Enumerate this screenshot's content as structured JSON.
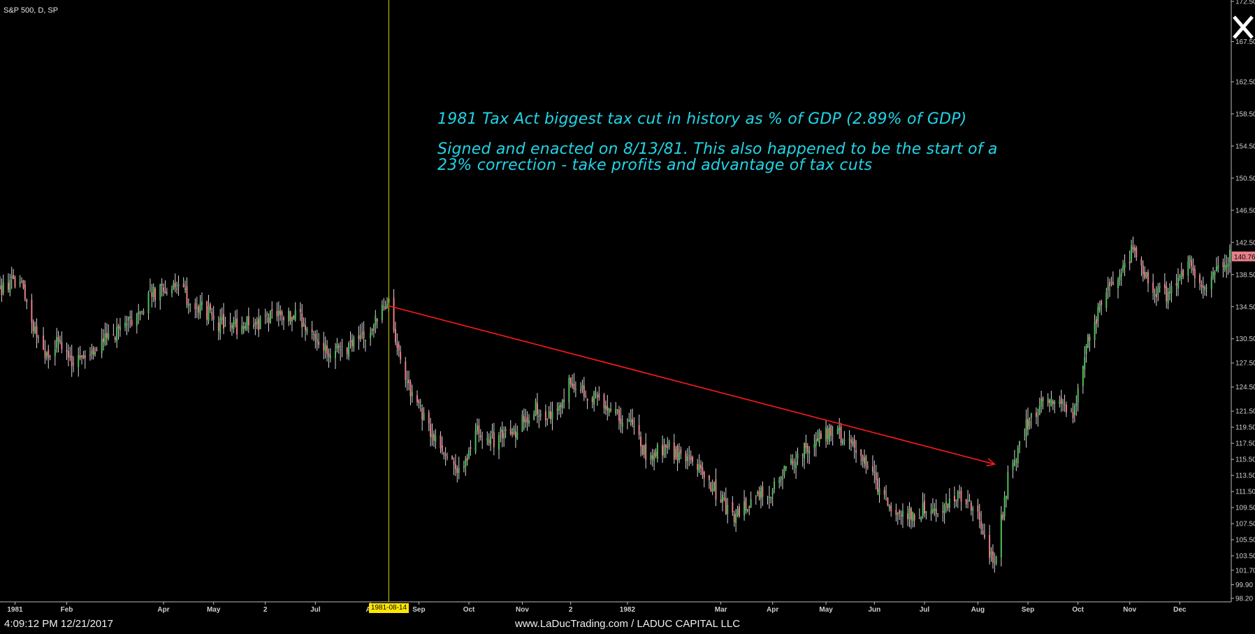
{
  "header": {
    "symbol_label": "S&P 500, D, SP"
  },
  "annotations": {
    "line1": "1981 Tax Act biggest tax cut in history as % of GDP (2.89% of GDP)",
    "line2a": "Signed and enacted on 8/13/81. This also happened to be the start of a",
    "line2b": "23% correction - take profits and advantage of tax cuts"
  },
  "status_bar": {
    "timestamp": "4:09:12 PM 12/21/2017",
    "credit": "www.LaDucTrading.com / LADUC CAPITAL LLC"
  },
  "colors": {
    "background": "#000000",
    "bull_candle": "#4fbf5a",
    "bear_candle": "#e87f8a",
    "wick": "#d8d8d8",
    "trendline": "#ff1a1a",
    "marker_line": "#d2d200",
    "annotation_text": "#22d4e6",
    "price_tag": "#e87f8a",
    "marker_tag": "#ffe600"
  },
  "chart_data": {
    "type": "candlestick",
    "title": "S&P 500, D, SP",
    "x_range": [
      "1980-12-24",
      "1982-12-31"
    ],
    "y_range": [
      98.2,
      172.5
    ],
    "grid": false,
    "x_ticks": [
      {
        "label": "1981",
        "date": "1981-01-02"
      },
      {
        "label": "Feb",
        "date": "1981-02-02"
      },
      {
        "label": "Apr",
        "date": "1981-04-01"
      },
      {
        "label": "May",
        "date": "1981-05-01"
      },
      {
        "label": "2",
        "date": "1981-06-01"
      },
      {
        "label": "Jul",
        "date": "1981-07-01"
      },
      {
        "label": "Au",
        "date": "1981-08-03"
      },
      {
        "label": "Sep",
        "date": "1981-09-01"
      },
      {
        "label": "Oct",
        "date": "1981-10-01"
      },
      {
        "label": "Nov",
        "date": "1981-11-02"
      },
      {
        "label": "2",
        "date": "1981-12-01"
      },
      {
        "label": "1982",
        "date": "1982-01-04"
      },
      {
        "label": "Mar",
        "date": "1982-03-01"
      },
      {
        "label": "Apr",
        "date": "1982-04-01"
      },
      {
        "label": "May",
        "date": "1982-05-03"
      },
      {
        "label": "Jun",
        "date": "1982-06-01"
      },
      {
        "label": "Jul",
        "date": "1982-07-01"
      },
      {
        "label": "Aug",
        "date": "1982-08-02"
      },
      {
        "label": "Sep",
        "date": "1982-09-01"
      },
      {
        "label": "Oct",
        "date": "1982-10-01"
      },
      {
        "label": "Nov",
        "date": "1982-11-01"
      },
      {
        "label": "Dec",
        "date": "1982-12-01"
      }
    ],
    "y_ticks": [
      "98.20",
      "99.90",
      "101.70",
      "103.50",
      "105.50",
      "107.50",
      "109.50",
      "111.50",
      "113.50",
      "115.50",
      "117.50",
      "119.50",
      "121.50",
      "124.50",
      "127.50",
      "130.50",
      "134.50",
      "138.50",
      "142.50",
      "146.50",
      "150.50",
      "154.50",
      "158.50",
      "162.50",
      "167.50",
      "172.50"
    ],
    "last_price": "140.76",
    "highlight_date": "1981-08-14",
    "trendline": {
      "start": {
        "date": "1981-08-14",
        "value": 134.6
      },
      "end": {
        "date": "1982-08-12",
        "value": 114.9
      },
      "arrow": true
    },
    "price_path": [
      {
        "date": "1980-12-24",
        "close": 136.5
      },
      {
        "date": "1981-01-06",
        "close": 138.0
      },
      {
        "date": "1981-01-12",
        "close": 133.0
      },
      {
        "date": "1981-01-20",
        "close": 127.5
      },
      {
        "date": "1981-01-28",
        "close": 130.5
      },
      {
        "date": "1981-02-05",
        "close": 128.0
      },
      {
        "date": "1981-02-12",
        "close": 127.5
      },
      {
        "date": "1981-02-26",
        "close": 130.5
      },
      {
        "date": "1981-03-10",
        "close": 132.0
      },
      {
        "date": "1981-03-25",
        "close": 136.0
      },
      {
        "date": "1981-04-06",
        "close": 137.0
      },
      {
        "date": "1981-04-20",
        "close": 135.0
      },
      {
        "date": "1981-05-04",
        "close": 132.5
      },
      {
        "date": "1981-05-15",
        "close": 132.0
      },
      {
        "date": "1981-05-28",
        "close": 132.5
      },
      {
        "date": "1981-06-10",
        "close": 133.5
      },
      {
        "date": "1981-06-22",
        "close": 133.0
      },
      {
        "date": "1981-07-07",
        "close": 129.0
      },
      {
        "date": "1981-07-20",
        "close": 129.5
      },
      {
        "date": "1981-07-31",
        "close": 130.5
      },
      {
        "date": "1981-08-10",
        "close": 133.8
      },
      {
        "date": "1981-08-14",
        "close": 134.6
      },
      {
        "date": "1981-08-24",
        "close": 125.5
      },
      {
        "date": "1981-09-03",
        "close": 121.0
      },
      {
        "date": "1981-09-15",
        "close": 117.0
      },
      {
        "date": "1981-09-25",
        "close": 113.5
      },
      {
        "date": "1981-10-05",
        "close": 119.0
      },
      {
        "date": "1981-10-16",
        "close": 118.0
      },
      {
        "date": "1981-10-28",
        "close": 119.0
      },
      {
        "date": "1981-11-10",
        "close": 122.0
      },
      {
        "date": "1981-11-20",
        "close": 120.5
      },
      {
        "date": "1981-11-30",
        "close": 125.0
      },
      {
        "date": "1981-12-08",
        "close": 124.0
      },
      {
        "date": "1981-12-18",
        "close": 123.0
      },
      {
        "date": "1982-01-05",
        "close": 120.0
      },
      {
        "date": "1982-01-15",
        "close": 116.0
      },
      {
        "date": "1982-01-27",
        "close": 117.0
      },
      {
        "date": "1982-02-08",
        "close": 115.5
      },
      {
        "date": "1982-02-19",
        "close": 113.5
      },
      {
        "date": "1982-03-08",
        "close": 108.5
      },
      {
        "date": "1982-03-19",
        "close": 110.5
      },
      {
        "date": "1982-03-31",
        "close": 111.5
      },
      {
        "date": "1982-04-13",
        "close": 115.5
      },
      {
        "date": "1982-04-26",
        "close": 117.5
      },
      {
        "date": "1982-05-07",
        "close": 119.5
      },
      {
        "date": "1982-05-17",
        "close": 117.5
      },
      {
        "date": "1982-05-28",
        "close": 114.5
      },
      {
        "date": "1982-06-10",
        "close": 110.0
      },
      {
        "date": "1982-06-22",
        "close": 108.5
      },
      {
        "date": "1982-07-02",
        "close": 109.5
      },
      {
        "date": "1982-07-13",
        "close": 109.5
      },
      {
        "date": "1982-07-23",
        "close": 111.0
      },
      {
        "date": "1982-08-02",
        "close": 108.0
      },
      {
        "date": "1982-08-12",
        "close": 102.4
      },
      {
        "date": "1982-08-20",
        "close": 113.0
      },
      {
        "date": "1982-08-31",
        "close": 119.5
      },
      {
        "date": "1982-09-14",
        "close": 123.5
      },
      {
        "date": "1982-09-28",
        "close": 121.5
      },
      {
        "date": "1982-10-08",
        "close": 131.0
      },
      {
        "date": "1982-10-20",
        "close": 137.0
      },
      {
        "date": "1982-11-03",
        "close": 141.5
      },
      {
        "date": "1982-11-15",
        "close": 137.0
      },
      {
        "date": "1982-11-24",
        "close": 135.5
      },
      {
        "date": "1982-12-06",
        "close": 140.0
      },
      {
        "date": "1982-12-16",
        "close": 137.0
      },
      {
        "date": "1982-12-31",
        "close": 140.76
      }
    ]
  }
}
